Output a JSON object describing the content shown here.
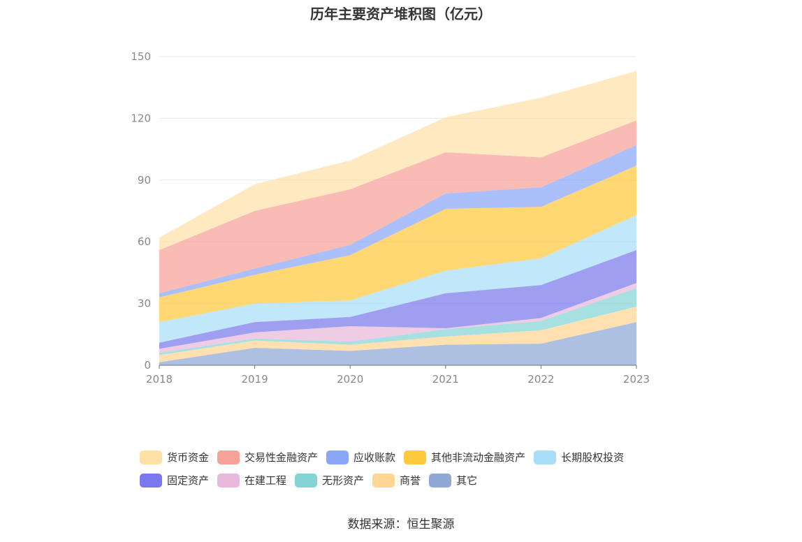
{
  "chart_data": {
    "type": "area",
    "stacked": true,
    "title": "历年主要资产堆积图（亿元）",
    "source": "数据来源：恒生聚源",
    "x": [
      "2018",
      "2019",
      "2020",
      "2021",
      "2022",
      "2023"
    ],
    "ylim": [
      0,
      150
    ],
    "yticks": [
      "0",
      "30",
      "60",
      "90",
      "120",
      "150"
    ],
    "grid": true,
    "legend_position": "bottom",
    "series": [
      {
        "name": "其它",
        "color": "#8fa8d6",
        "values": [
          1.5,
          8.5,
          7,
          10,
          10.5,
          21
        ]
      },
      {
        "name": "商誉",
        "color": "#ffd693",
        "values": [
          3.5,
          3.5,
          3,
          4,
          6.5,
          7.5
        ]
      },
      {
        "name": "无形资产",
        "color": "#84d4d4",
        "values": [
          1,
          1,
          1.5,
          3.5,
          4.5,
          9
        ]
      },
      {
        "name": "在建工程",
        "color": "#e8b8da",
        "values": [
          2,
          3,
          7.5,
          0.5,
          1.5,
          2.5
        ]
      },
      {
        "name": "固定资产",
        "color": "#7a78ec",
        "values": [
          3,
          5,
          4.5,
          17,
          16,
          16
        ]
      },
      {
        "name": "长期股权投资",
        "color": "#a8def8",
        "values": [
          10,
          9,
          8,
          11,
          13,
          17
        ]
      },
      {
        "name": "其他非流动金融资产",
        "color": "#ffc93e",
        "values": [
          12,
          14,
          22,
          30,
          25,
          24
        ]
      },
      {
        "name": "应收账款",
        "color": "#8aa6f8",
        "values": [
          2,
          3,
          5,
          7.5,
          9.5,
          10
        ]
      },
      {
        "name": "交易性金融资产",
        "color": "#f7a298",
        "values": [
          21,
          28,
          27,
          20,
          14.5,
          12
        ]
      },
      {
        "name": "货币资金",
        "color": "#ffe1a7",
        "values": [
          6,
          13,
          14,
          17,
          29,
          24
        ]
      }
    ],
    "legend_order": [
      "货币资金",
      "交易性金融资产",
      "应收账款",
      "其他非流动金融资产",
      "长期股权投资",
      "固定资产",
      "在建工程",
      "无形资产",
      "商誉",
      "其它"
    ]
  }
}
